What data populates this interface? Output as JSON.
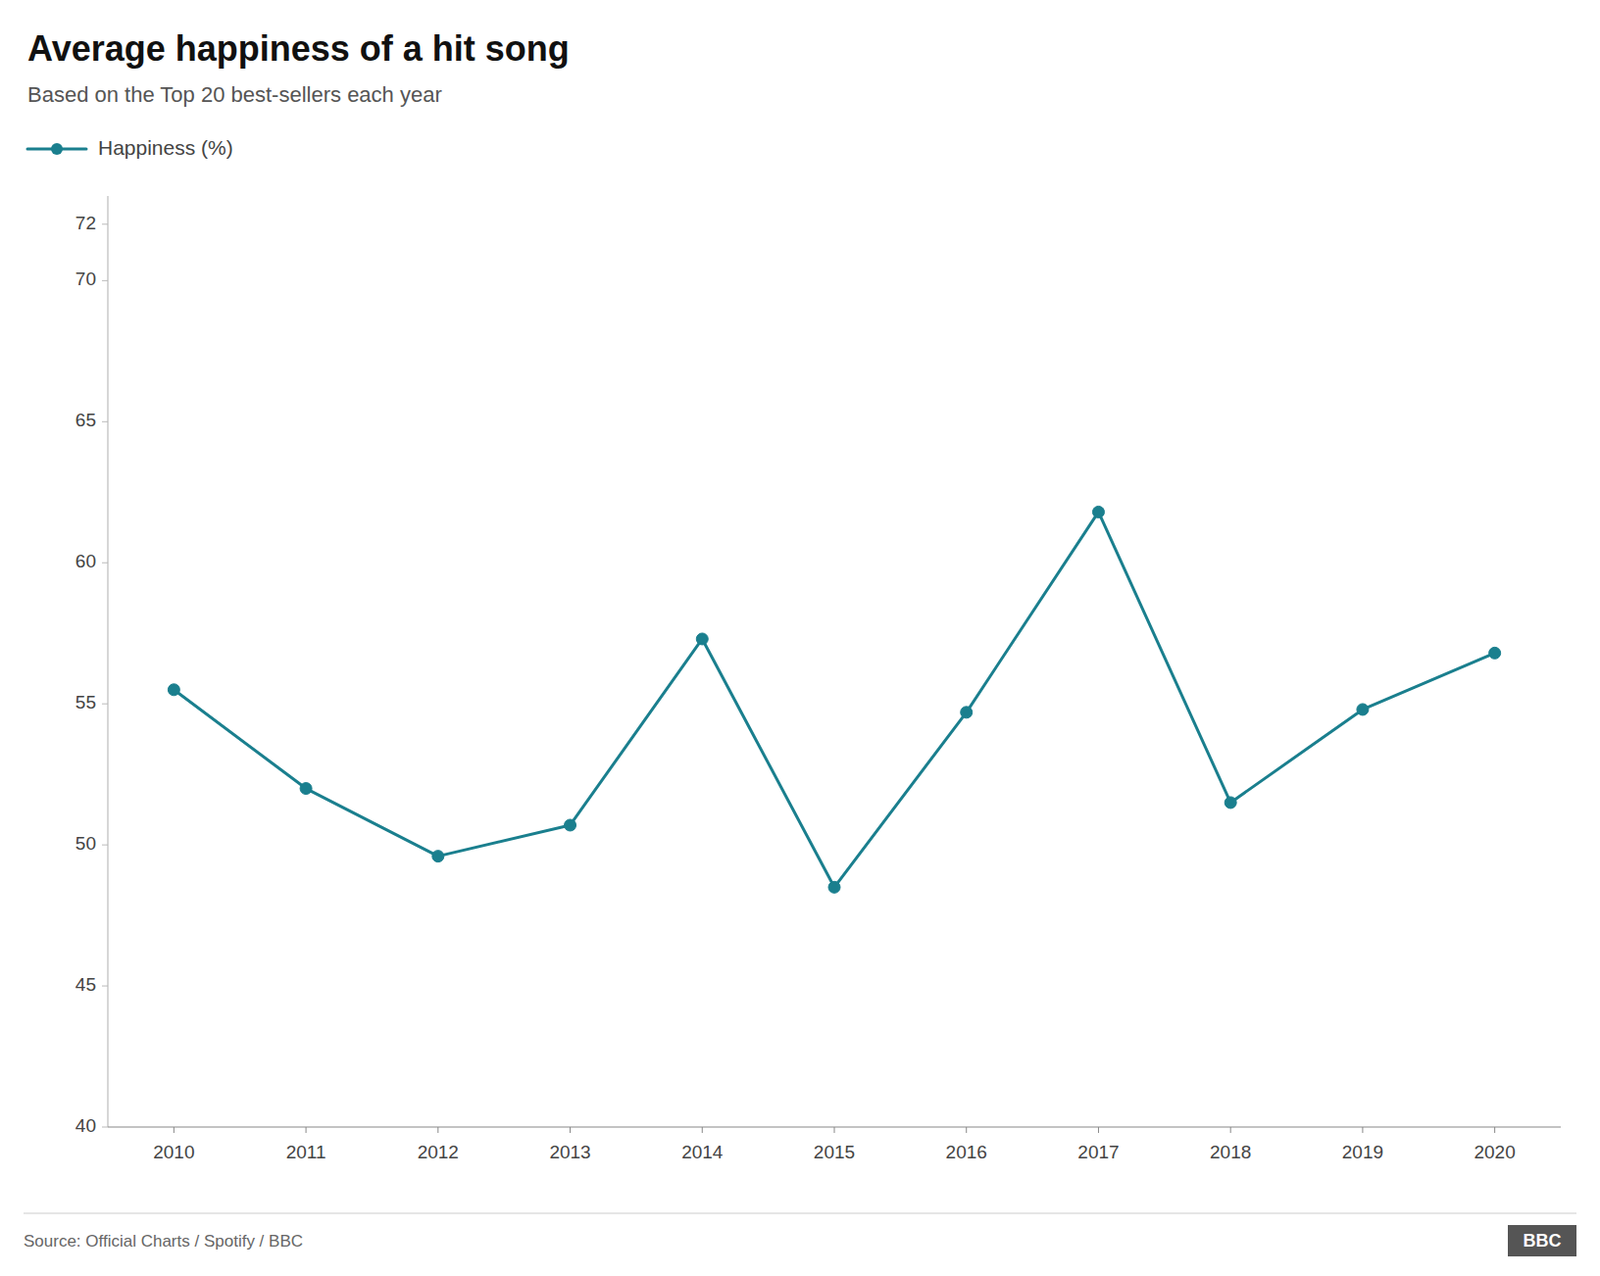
{
  "chart_data": {
    "type": "line",
    "title": "Average happiness of a hit song",
    "subtitle": "Based on the Top 20 best-sellers each year",
    "source": "Source: Official Charts / Spotify / BBC",
    "annotations": [
      "BBC"
    ],
    "x": [
      2010,
      2011,
      2012,
      2013,
      2014,
      2015,
      2016,
      2017,
      2018,
      2019,
      2020
    ],
    "series": [
      {
        "name": "Happiness (%)",
        "color": "#1a7f8e",
        "marker": "circle",
        "values": [
          55.5,
          52.0,
          49.6,
          50.7,
          57.3,
          48.5,
          54.7,
          61.8,
          51.5,
          54.8,
          56.8
        ]
      }
    ],
    "xlim": [
      2009.5,
      2020.5
    ],
    "xticks": [
      2010,
      2011,
      2012,
      2013,
      2014,
      2015,
      2016,
      2017,
      2018,
      2019,
      2020
    ],
    "ylim": [
      40,
      73
    ],
    "yticks": [
      40,
      45,
      50,
      55,
      60,
      65,
      70,
      72
    ],
    "grid": false,
    "legend": "upper left"
  }
}
